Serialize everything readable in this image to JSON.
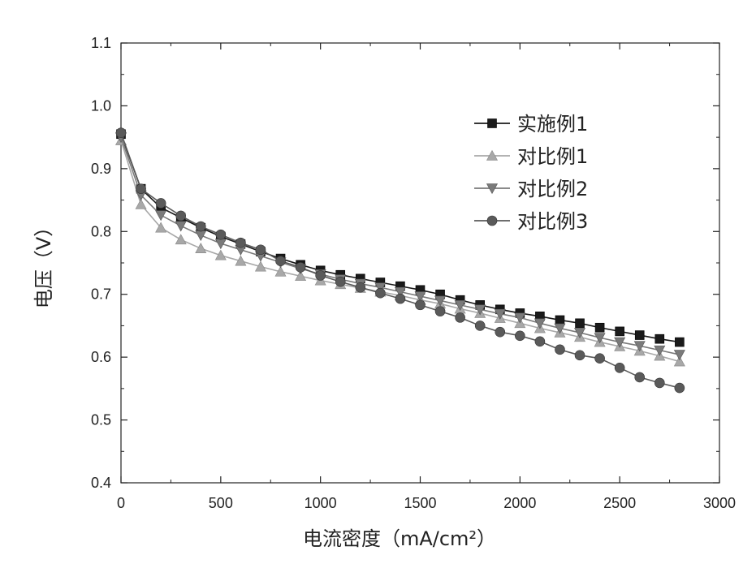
{
  "chart_data": {
    "type": "line",
    "title": "",
    "xlabel": "电流密度（mA/cm²）",
    "ylabel": "电压（V）",
    "xlim": [
      0,
      3000
    ],
    "ylim": [
      0.4,
      1.1
    ],
    "xticks": [
      "0",
      "500",
      "1000",
      "1500",
      "2000",
      "2500",
      "3000"
    ],
    "yticks": [
      "0.4",
      "0.5",
      "0.6",
      "0.7",
      "0.8",
      "0.9",
      "1.0",
      "1.1"
    ],
    "grid": false,
    "legend_position": "top-right",
    "x": [
      0,
      100,
      200,
      300,
      400,
      500,
      600,
      700,
      800,
      900,
      1000,
      1100,
      1200,
      1300,
      1400,
      1500,
      1600,
      1700,
      1800,
      1900,
      2000,
      2100,
      2200,
      2300,
      2400,
      2500,
      2600,
      2700,
      2800
    ],
    "series": [
      {
        "name": "实施例1",
        "marker": "square",
        "color": "#1a1a1a",
        "values": [
          0.955,
          0.868,
          0.838,
          0.822,
          0.806,
          0.792,
          0.78,
          0.768,
          0.757,
          0.747,
          0.738,
          0.731,
          0.725,
          0.719,
          0.713,
          0.707,
          0.7,
          0.691,
          0.683,
          0.676,
          0.67,
          0.665,
          0.659,
          0.654,
          0.647,
          0.641,
          0.635,
          0.629,
          0.624
        ]
      },
      {
        "name": "对比例1",
        "marker": "triangle-up",
        "color": "#a8a8a8",
        "values": [
          0.945,
          0.843,
          0.806,
          0.787,
          0.773,
          0.762,
          0.753,
          0.744,
          0.736,
          0.729,
          0.722,
          0.716,
          0.71,
          0.704,
          0.698,
          0.691,
          0.685,
          0.677,
          0.67,
          0.662,
          0.654,
          0.646,
          0.639,
          0.632,
          0.624,
          0.617,
          0.61,
          0.602,
          0.593
        ]
      },
      {
        "name": "对比例2",
        "marker": "triangle-down",
        "color": "#7a7a7a",
        "values": [
          0.95,
          0.858,
          0.826,
          0.809,
          0.794,
          0.781,
          0.771,
          0.761,
          0.751,
          0.741,
          0.732,
          0.724,
          0.717,
          0.711,
          0.704,
          0.697,
          0.69,
          0.683,
          0.676,
          0.669,
          0.663,
          0.654,
          0.646,
          0.639,
          0.631,
          0.624,
          0.618,
          0.611,
          0.604
        ]
      },
      {
        "name": "对比例3",
        "marker": "circle",
        "color": "#5a5a5a",
        "values": [
          0.957,
          0.868,
          0.845,
          0.825,
          0.808,
          0.795,
          0.782,
          0.771,
          0.753,
          0.743,
          0.73,
          0.72,
          0.711,
          0.702,
          0.693,
          0.683,
          0.673,
          0.663,
          0.65,
          0.64,
          0.634,
          0.625,
          0.612,
          0.603,
          0.598,
          0.583,
          0.568,
          0.559,
          0.551
        ]
      }
    ]
  }
}
